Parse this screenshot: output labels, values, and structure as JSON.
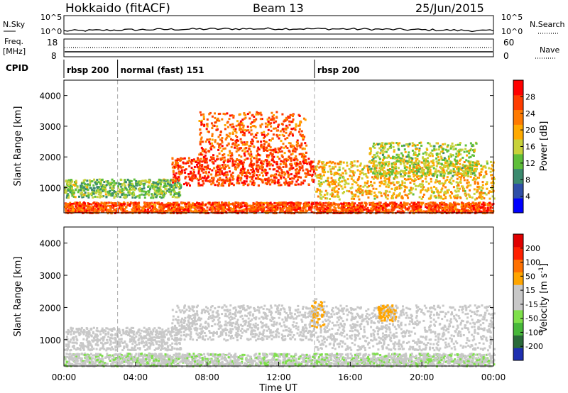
{
  "header": {
    "station": "Hokkaido (fitACF)",
    "beam": "Beam 13",
    "date": "25/Jun/2015"
  },
  "noise_panel": {
    "left_label": "N.Sky",
    "right_label": "N.Search",
    "left_ticks": [
      "10^5",
      "10^0"
    ],
    "right_ticks": [
      "10^5",
      "10^0"
    ]
  },
  "freq_panel": {
    "left_label_line1": "Freq.",
    "left_label_line2": "[MHz]",
    "left_ticks": [
      "18",
      "8"
    ],
    "right_label": "Nave",
    "right_ticks": [
      "60",
      "0"
    ]
  },
  "cpid": {
    "label": "CPID",
    "segments": [
      {
        "start_hour": 0,
        "text": "rbsp 200"
      },
      {
        "start_hour": 3,
        "text": "normal (fast) 151"
      },
      {
        "start_hour": 14,
        "text": "rbsp 200"
      }
    ]
  },
  "colors": {
    "power_scale": [
      "#0000ff",
      "#2f4fa8",
      "#3b8a6e",
      "#5fbf3a",
      "#c8d23a",
      "#ffaa00",
      "#ff7a00",
      "#ff3c00",
      "#ff0000"
    ],
    "velocity_scale": [
      "#1e2fb0",
      "#2a6a3a",
      "#47b83a",
      "#7ee04a",
      "#c8c8c8",
      "#c8c8c8",
      "#ffa500",
      "#ff7000",
      "#ff2000",
      "#e00000"
    ]
  },
  "chart_data": [
    {
      "type": "heatmap",
      "name": "power",
      "xlabel": "",
      "ylabel": "Slant Range [km]",
      "xlim_hours": [
        0,
        24
      ],
      "ylim": [
        180,
        4500
      ],
      "yticks": [
        1000,
        2000,
        3000,
        4000
      ],
      "colorbar": {
        "label": "Power [dB]",
        "range": [
          0,
          32
        ],
        "ticks": [
          4,
          8,
          12,
          16,
          20,
          24,
          28
        ]
      },
      "regions": [
        {
          "x0": 0,
          "x1": 24,
          "y0": 200,
          "y1": 550,
          "value": 26
        },
        {
          "x0": 0,
          "x1": 6.5,
          "y0": 700,
          "y1": 1300,
          "value": 13
        },
        {
          "x0": 6,
          "x1": 14,
          "y0": 1100,
          "y1": 2000,
          "value": 27
        },
        {
          "x0": 7.5,
          "x1": 13.5,
          "y0": 2000,
          "y1": 3500,
          "value": 25
        },
        {
          "x0": 14,
          "x1": 24,
          "y0": 650,
          "y1": 1900,
          "value": 19
        },
        {
          "x0": 17,
          "x1": 23,
          "y0": 1400,
          "y1": 2500,
          "value": 15
        }
      ]
    },
    {
      "type": "heatmap",
      "name": "velocity",
      "xlabel": "Time UT",
      "ylabel": "Slant Range [km]",
      "xlim_hours": [
        0,
        24
      ],
      "ylim": [
        180,
        4500
      ],
      "yticks": [
        1000,
        2000,
        3000,
        4000
      ],
      "xtick_labels": [
        "00:00",
        "04:00",
        "08:00",
        "12:00",
        "16:00",
        "20:00",
        "00:00"
      ],
      "colorbar": {
        "label": "Velocity [m s^-1]",
        "range": [
          -250,
          250
        ],
        "ticks": [
          200,
          100,
          50,
          15,
          -15,
          -50,
          -100,
          -200
        ]
      },
      "regions": [
        {
          "x0": 0,
          "x1": 24,
          "y0": 200,
          "y1": 600,
          "value": -40
        },
        {
          "x0": 0,
          "x1": 6.5,
          "y0": 700,
          "y1": 1400,
          "value": 0
        },
        {
          "x0": 6,
          "x1": 14,
          "y0": 1000,
          "y1": 2100,
          "value": 0
        },
        {
          "x0": 14,
          "x1": 24,
          "y0": 700,
          "y1": 2100,
          "value": 0
        },
        {
          "x0": 13.8,
          "x1": 14.5,
          "y0": 1400,
          "y1": 2300,
          "value": 60
        },
        {
          "x0": 17.5,
          "x1": 18.5,
          "y0": 1600,
          "y1": 2100,
          "value": 60
        }
      ]
    }
  ]
}
